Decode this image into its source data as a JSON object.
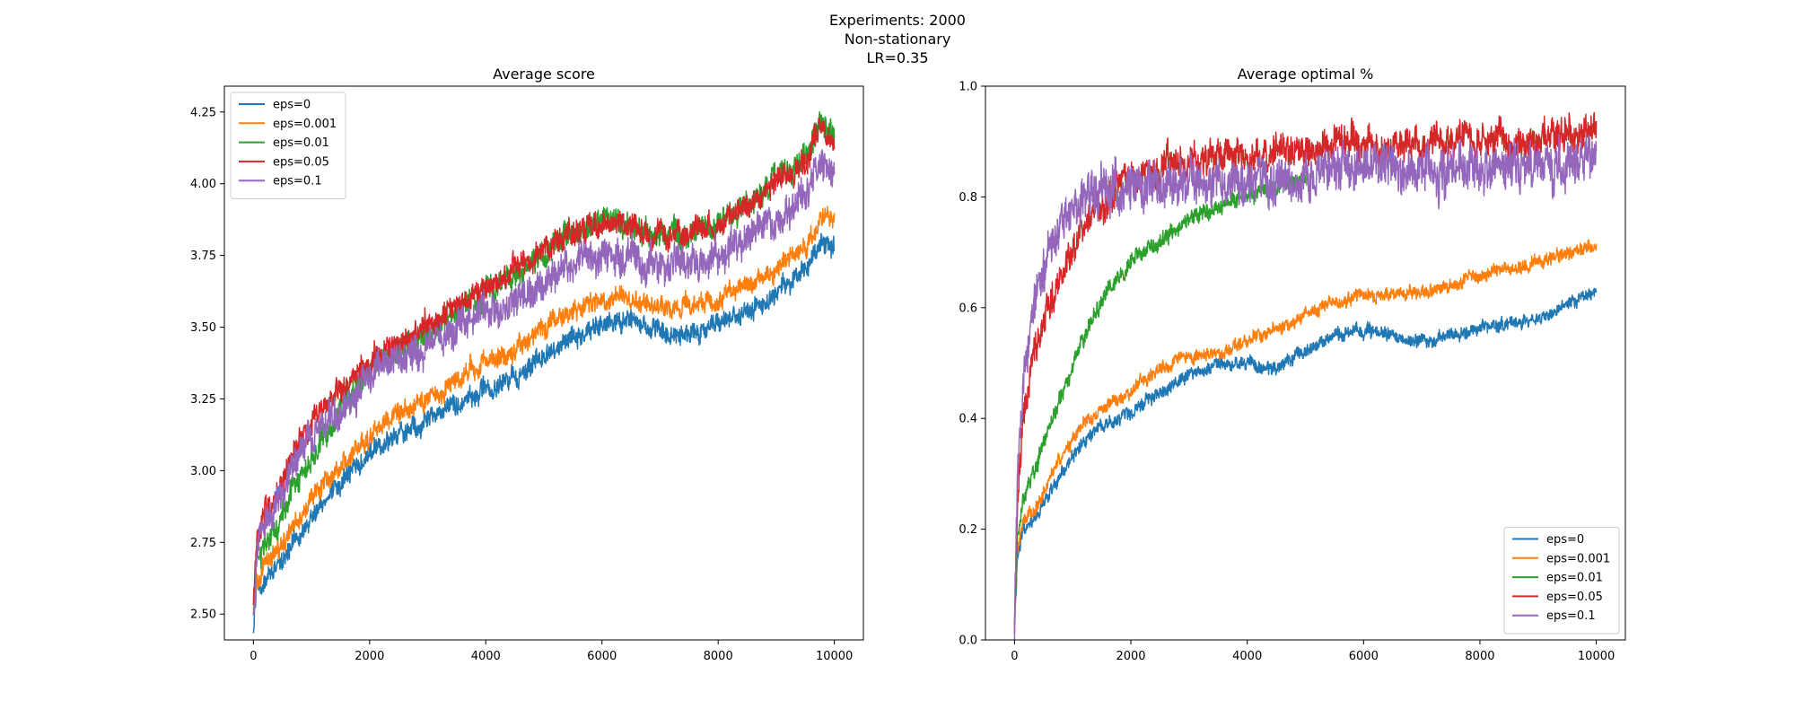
{
  "figure": {
    "suptitle_lines": [
      "Experiments: 2000",
      "Non-stationary",
      "LR=0.35"
    ]
  },
  "colors": {
    "eps=0": "#1f77b4",
    "eps=0.001": "#ff7f0e",
    "eps=0.01": "#2ca02c",
    "eps=0.05": "#d62728",
    "eps=0.1": "#9467bd"
  },
  "chart_data": [
    {
      "type": "line",
      "title": "Average score",
      "xlabel": "",
      "ylabel": "",
      "xlim": [
        -500,
        10500
      ],
      "ylim": [
        2.41,
        4.34
      ],
      "xticks": [
        0,
        2000,
        4000,
        6000,
        8000,
        10000
      ],
      "yticks": [
        2.5,
        2.75,
        3.0,
        3.25,
        3.5,
        3.75,
        4.0,
        4.25
      ],
      "ytick_labels": [
        "2.50",
        "2.75",
        "3.00",
        "3.25",
        "3.50",
        "3.75",
        "4.00",
        "4.25"
      ],
      "grid": false,
      "legend_position": "upper-left",
      "series": [
        {
          "name": "eps=0",
          "noise": 0.035,
          "x": [
            0,
            50,
            200,
            500,
            800,
            1200,
            1600,
            2000,
            2500,
            3000,
            3500,
            4000,
            4500,
            5000,
            5500,
            6000,
            6500,
            7000,
            7500,
            8000,
            8500,
            9000,
            9500,
            9800,
            10000
          ],
          "y": [
            2.45,
            2.58,
            2.62,
            2.68,
            2.78,
            2.9,
            2.98,
            3.05,
            3.12,
            3.18,
            3.24,
            3.28,
            3.33,
            3.4,
            3.46,
            3.52,
            3.52,
            3.48,
            3.47,
            3.5,
            3.55,
            3.62,
            3.7,
            3.8,
            3.78
          ]
        },
        {
          "name": "eps=0.001",
          "noise": 0.035,
          "x": [
            0,
            50,
            200,
            500,
            800,
            1200,
            1600,
            2000,
            2500,
            3000,
            3500,
            4000,
            4500,
            5000,
            5500,
            6000,
            6500,
            7000,
            7500,
            8000,
            8500,
            9000,
            9500,
            9800,
            10000
          ],
          "y": [
            2.47,
            2.6,
            2.66,
            2.74,
            2.85,
            2.95,
            3.04,
            3.12,
            3.2,
            3.25,
            3.32,
            3.38,
            3.42,
            3.5,
            3.55,
            3.6,
            3.6,
            3.57,
            3.57,
            3.6,
            3.65,
            3.7,
            3.78,
            3.88,
            3.9
          ]
        },
        {
          "name": "eps=0.01",
          "noise": 0.045,
          "x": [
            0,
            50,
            200,
            500,
            800,
            1200,
            1600,
            2000,
            2500,
            3000,
            3500,
            4000,
            4500,
            5000,
            5500,
            6000,
            6500,
            7000,
            7500,
            8000,
            8500,
            9000,
            9500,
            9800,
            10000
          ],
          "y": [
            2.5,
            2.68,
            2.74,
            2.85,
            2.98,
            3.12,
            3.25,
            3.35,
            3.42,
            3.48,
            3.55,
            3.62,
            3.68,
            3.76,
            3.82,
            3.87,
            3.85,
            3.83,
            3.83,
            3.85,
            3.93,
            4.02,
            4.1,
            4.22,
            4.15
          ]
        },
        {
          "name": "eps=0.05",
          "noise": 0.045,
          "x": [
            0,
            50,
            200,
            500,
            800,
            1200,
            1600,
            2000,
            2500,
            3000,
            3500,
            4000,
            4500,
            5000,
            5500,
            6000,
            6500,
            7000,
            7500,
            8000,
            8500,
            9000,
            9500,
            9800,
            10000
          ],
          "y": [
            2.52,
            2.75,
            2.85,
            2.95,
            3.1,
            3.22,
            3.3,
            3.38,
            3.45,
            3.5,
            3.57,
            3.64,
            3.7,
            3.77,
            3.83,
            3.87,
            3.85,
            3.83,
            3.83,
            3.84,
            3.92,
            4.0,
            4.08,
            4.2,
            4.12
          ]
        },
        {
          "name": "eps=0.1",
          "noise": 0.06,
          "x": [
            0,
            50,
            200,
            500,
            800,
            1200,
            1600,
            2000,
            2500,
            3000,
            3500,
            4000,
            4500,
            5000,
            5500,
            6000,
            6500,
            7000,
            7500,
            8000,
            8500,
            9000,
            9500,
            9800,
            10000
          ],
          "y": [
            2.5,
            2.72,
            2.82,
            2.92,
            3.05,
            3.16,
            3.24,
            3.32,
            3.38,
            3.43,
            3.5,
            3.55,
            3.6,
            3.66,
            3.72,
            3.76,
            3.74,
            3.72,
            3.72,
            3.74,
            3.8,
            3.88,
            3.96,
            4.08,
            4.02
          ]
        }
      ]
    },
    {
      "type": "line",
      "title": "Average optimal %",
      "xlabel": "",
      "ylabel": "",
      "xlim": [
        -500,
        10500
      ],
      "ylim": [
        0.0,
        1.0
      ],
      "xticks": [
        0,
        2000,
        4000,
        6000,
        8000,
        10000
      ],
      "yticks": [
        0.0,
        0.2,
        0.4,
        0.6,
        0.8,
        1.0
      ],
      "ytick_labels": [
        "0.0",
        "0.2",
        "0.4",
        "0.6",
        "0.8",
        "1.0"
      ],
      "grid": false,
      "legend_position": "lower-right",
      "series": [
        {
          "name": "eps=0",
          "noise": 0.012,
          "x": [
            0,
            50,
            150,
            300,
            500,
            800,
            1200,
            1600,
            2000,
            2500,
            3000,
            3500,
            4000,
            4500,
            5000,
            5500,
            6000,
            6500,
            7000,
            7500,
            8000,
            8500,
            9000,
            9500,
            10000
          ],
          "y": [
            0.03,
            0.15,
            0.2,
            0.21,
            0.25,
            0.3,
            0.36,
            0.39,
            0.41,
            0.45,
            0.48,
            0.5,
            0.5,
            0.49,
            0.52,
            0.55,
            0.56,
            0.55,
            0.54,
            0.55,
            0.56,
            0.57,
            0.58,
            0.61,
            0.63
          ]
        },
        {
          "name": "eps=0.001",
          "noise": 0.012,
          "x": [
            0,
            50,
            150,
            300,
            500,
            800,
            1200,
            1600,
            2000,
            2500,
            3000,
            3500,
            4000,
            4500,
            5000,
            5500,
            6000,
            6500,
            7000,
            7500,
            8000,
            8500,
            9000,
            9500,
            10000
          ],
          "y": [
            0.03,
            0.16,
            0.21,
            0.23,
            0.27,
            0.33,
            0.39,
            0.42,
            0.45,
            0.49,
            0.51,
            0.52,
            0.54,
            0.56,
            0.59,
            0.61,
            0.62,
            0.62,
            0.63,
            0.64,
            0.66,
            0.67,
            0.68,
            0.7,
            0.71
          ]
        },
        {
          "name": "eps=0.01",
          "noise": 0.015,
          "x": [
            0,
            50,
            150,
            300,
            500,
            800,
            1200,
            1600,
            2000,
            2500,
            3000,
            3500,
            4000,
            4500,
            5000
          ],
          "y": [
            0.03,
            0.18,
            0.25,
            0.3,
            0.36,
            0.44,
            0.55,
            0.63,
            0.68,
            0.72,
            0.76,
            0.78,
            0.8,
            0.82,
            0.83
          ]
        },
        {
          "name": "eps=0.05",
          "noise": 0.03,
          "x": [
            0,
            50,
            150,
            300,
            500,
            800,
            1200,
            1600,
            2000,
            2500,
            3000,
            3500,
            4000,
            4500,
            5000,
            5500,
            6000,
            6500,
            7000,
            7500,
            8000,
            8500,
            9000,
            9500,
            10000
          ],
          "y": [
            0.03,
            0.25,
            0.4,
            0.5,
            0.58,
            0.66,
            0.74,
            0.8,
            0.83,
            0.85,
            0.86,
            0.87,
            0.87,
            0.88,
            0.88,
            0.89,
            0.89,
            0.89,
            0.89,
            0.89,
            0.9,
            0.9,
            0.9,
            0.91,
            0.91
          ]
        },
        {
          "name": "eps=0.1",
          "noise": 0.04,
          "x": [
            0,
            50,
            150,
            300,
            500,
            800,
            1200,
            1600,
            2000,
            2500,
            3000,
            3500,
            4000,
            4500,
            5000,
            5500,
            6000,
            6500,
            7000,
            7500,
            8000,
            8500,
            9000,
            9500,
            10000
          ],
          "y": [
            0.03,
            0.3,
            0.48,
            0.58,
            0.68,
            0.76,
            0.8,
            0.81,
            0.82,
            0.82,
            0.83,
            0.83,
            0.83,
            0.84,
            0.84,
            0.84,
            0.85,
            0.85,
            0.85,
            0.85,
            0.86,
            0.86,
            0.86,
            0.86,
            0.87
          ]
        }
      ]
    }
  ]
}
